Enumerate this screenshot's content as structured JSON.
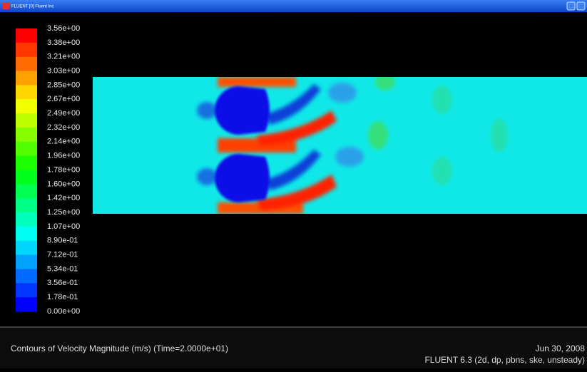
{
  "window": {
    "title": "FLUENT [0] Fluent Inc"
  },
  "colorbar": {
    "labels": [
      "3.56e+00",
      "3.38e+00",
      "3.21e+00",
      "3.03e+00",
      "2.85e+00",
      "2.67e+00",
      "2.49e+00",
      "2.32e+00",
      "2.14e+00",
      "1.96e+00",
      "1.78e+00",
      "1.60e+00",
      "1.42e+00",
      "1.25e+00",
      "1.07e+00",
      "8.90e-01",
      "7.12e-01",
      "5.34e-01",
      "3.56e-01",
      "1.78e-01",
      "0.00e+00"
    ]
  },
  "footer": {
    "description": "Contours of Velocity Magnitude (m/s)  (Time=2.0000e+01)",
    "date": "Jun 30, 2008",
    "version": "FLUENT 6.3 (2d, dp, pbns, ske, unsteady)"
  }
}
